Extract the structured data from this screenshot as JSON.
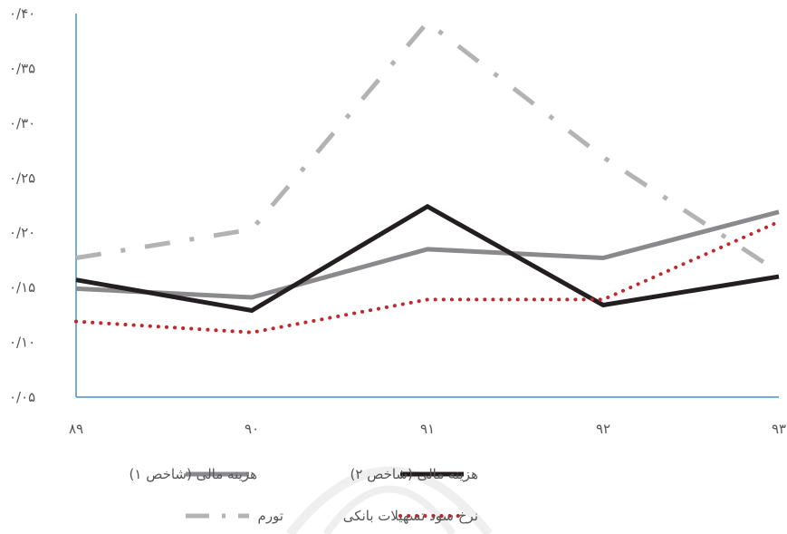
{
  "chart_data": {
    "type": "line",
    "title": "",
    "xlabel": "",
    "ylabel": "",
    "categories": [
      "۸۹",
      "۹۰",
      "۹۱",
      "۹۲",
      "۹۳"
    ],
    "y_ticks": [
      "۰/۰۵",
      "۰/۱۰",
      "۰/۱۵",
      "۰/۲۰",
      "۰/۲۵",
      "۰/۳۰",
      "۰/۳۵",
      "۰/۴۰"
    ],
    "ylim": [
      0.05,
      0.4
    ],
    "grid": false,
    "legend_position": "bottom",
    "series": [
      {
        "name": "هزینه مالی (شاخص ۱)",
        "values": [
          0.149,
          0.141,
          0.185,
          0.177,
          0.219
        ],
        "color": "#8a8a8c",
        "style": "solid",
        "width": 5
      },
      {
        "name": "هزینه مالی (شاخص ۲)",
        "values": [
          0.157,
          0.129,
          0.224,
          0.134,
          0.16
        ],
        "color": "#231f20",
        "style": "solid",
        "width": 5
      },
      {
        "name": "تورم",
        "values": [
          0.177,
          0.203,
          0.392,
          0.269,
          0.164
        ],
        "color": "#b3b3b3",
        "style": "dashdot",
        "width": 5
      },
      {
        "name": "نرخ سود تسهیلات بانکی",
        "values": [
          0.119,
          0.109,
          0.139,
          0.139,
          0.21
        ],
        "color": "#c1272d",
        "style": "dotted",
        "width": 4
      }
    ]
  }
}
